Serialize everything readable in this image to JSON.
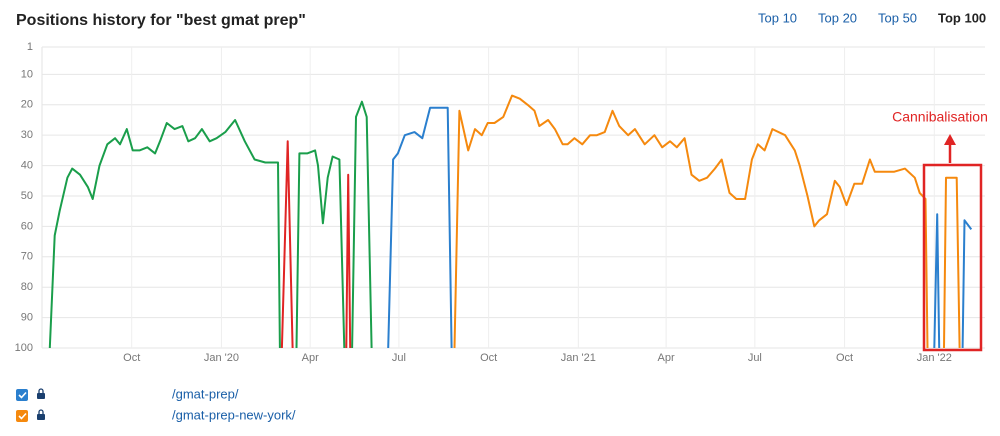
{
  "header": {
    "title": "Positions history for \"best gmat prep\"",
    "tabs": [
      "Top 10",
      "Top 20",
      "Top 50",
      "Top 100"
    ],
    "active_tab": 3
  },
  "chart_data": {
    "type": "line",
    "xlim": [
      0,
      967
    ],
    "xticks": [
      {
        "value": 92,
        "label": "Oct"
      },
      {
        "value": 184,
        "label": "Jan '20"
      },
      {
        "value": 275,
        "label": "Apr"
      },
      {
        "value": 366,
        "label": "Jul"
      },
      {
        "value": 458,
        "label": "Oct"
      },
      {
        "value": 550,
        "label": "Jan '21"
      },
      {
        "value": 640,
        "label": "Apr"
      },
      {
        "value": 731,
        "label": "Jul"
      },
      {
        "value": 823,
        "label": "Oct"
      },
      {
        "value": 915,
        "label": "Jan '22"
      }
    ],
    "ylim": [
      100,
      1
    ],
    "yticks": [
      1,
      10,
      20,
      30,
      40,
      50,
      60,
      70,
      80,
      90,
      100
    ],
    "grid": true,
    "annotation": "Cannibalisation",
    "series": [
      {
        "color": "#1a9e4b",
        "x": [
          8,
          13,
          18,
          26,
          31,
          39,
          47,
          52,
          59,
          67,
          75,
          80,
          87,
          93,
          100,
          108,
          116,
          121,
          128,
          136,
          144,
          150,
          157,
          164,
          172,
          179,
          188,
          198,
          208,
          218,
          229,
          242,
          244,
          null,
          261,
          264,
          272,
          280,
          283,
          288,
          293,
          298,
          305,
          310,
          null,
          318,
          322,
          328,
          333,
          338
        ],
        "values": [
          100,
          63,
          55,
          44,
          41,
          43,
          47,
          51,
          40,
          33,
          31,
          33,
          28,
          35,
          35,
          34,
          36,
          32,
          26,
          28,
          27,
          32,
          31,
          28,
          32,
          31,
          29,
          25,
          32,
          38,
          39,
          39,
          100,
          null,
          100,
          36,
          36,
          35,
          40,
          59,
          44,
          37,
          38,
          100,
          null,
          100,
          24,
          19,
          24,
          100
        ]
      },
      {
        "color": "#e02424",
        "x": [
          246,
          252,
          257,
          null,
          312,
          314,
          316
        ],
        "values": [
          100,
          32,
          100,
          null,
          100,
          43,
          100
        ]
      },
      {
        "name": "/gmat-prep/",
        "color": "#2a7fce",
        "x": [
          355,
          360,
          365,
          372,
          382,
          390,
          398,
          408,
          416,
          420,
          null,
          915,
          918,
          920,
          null,
          944,
          946,
          953
        ],
        "values": [
          100,
          38,
          36,
          30,
          29,
          31,
          21,
          21,
          21,
          100,
          null,
          100,
          56,
          100,
          null,
          100,
          58,
          61
        ]
      },
      {
        "name": "/gmat-prep-new-york/",
        "color": "#f5890e",
        "x": [
          423,
          428,
          437,
          444,
          451,
          457,
          464,
          473,
          482,
          490,
          498,
          505,
          510,
          519,
          526,
          534,
          539,
          546,
          554,
          562,
          569,
          577,
          585,
          592,
          601,
          608,
          618,
          628,
          636,
          644,
          651,
          659,
          666,
          674,
          682,
          690,
          697,
          705,
          712,
          721,
          728,
          734,
          741,
          749,
          762,
          772,
          777,
          785,
          792,
          797,
          805,
          813,
          818,
          825,
          833,
          841,
          849,
          854,
          864,
          874,
          885,
          895,
          900,
          906,
          908,
          null,
          925,
          927,
          938,
          941
        ],
        "values": [
          100,
          22,
          35,
          28,
          30,
          26,
          26,
          24,
          17,
          18,
          20,
          22,
          27,
          25,
          28,
          33,
          33,
          31,
          33,
          30,
          30,
          29,
          22,
          27,
          30,
          28,
          33,
          30,
          34,
          32,
          34,
          31,
          43,
          45,
          44,
          41,
          38,
          49,
          51,
          51,
          38,
          33,
          35,
          28,
          30,
          35,
          40,
          50,
          60,
          58,
          56,
          45,
          47,
          53,
          46,
          46,
          38,
          42,
          42,
          42,
          41,
          44,
          49,
          51,
          100,
          null,
          100,
          44,
          44,
          100
        ]
      }
    ]
  }
}
